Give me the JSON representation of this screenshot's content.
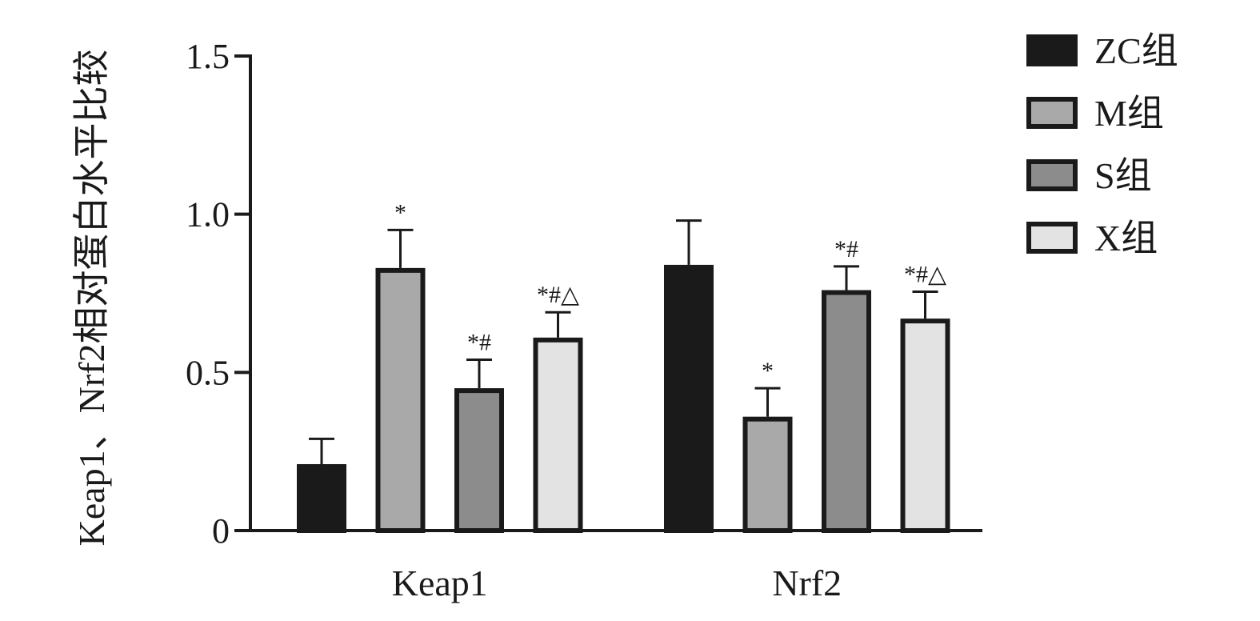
{
  "chart_data": {
    "type": "bar",
    "title": "",
    "xlabel": "",
    "ylabel": "Keap1、Nrf2相对蛋白水平比较",
    "ylim": [
      0,
      1.5
    ],
    "yticks": [
      {
        "value": 0,
        "label": "0"
      },
      {
        "value": 0.5,
        "label": "0.5"
      },
      {
        "value": 1.0,
        "label": "1.0"
      },
      {
        "value": 1.5,
        "label": "1.5"
      }
    ],
    "categories": [
      "Keap1",
      "Nrf2"
    ],
    "legend_position": "top-right",
    "grid": false,
    "series": [
      {
        "name": "ZC组",
        "color": "#1a1a1a",
        "values": [
          0.21,
          0.84
        ],
        "errors": [
          0.08,
          0.14
        ],
        "significance": [
          "",
          ""
        ]
      },
      {
        "name": "M组",
        "color": "#a9a9a9",
        "values": [
          0.83,
          0.36
        ],
        "errors": [
          0.12,
          0.09
        ],
        "significance": [
          "*",
          "*"
        ]
      },
      {
        "name": "S组",
        "color": "#8c8c8c",
        "values": [
          0.45,
          0.76
        ],
        "errors": [
          0.09,
          0.075
        ],
        "significance": [
          "*#",
          "*#"
        ]
      },
      {
        "name": "X组",
        "color": "#e3e3e3",
        "values": [
          0.61,
          0.67
        ],
        "errors": [
          0.08,
          0.085
        ],
        "significance": [
          "*#△",
          "*#△"
        ]
      }
    ]
  }
}
